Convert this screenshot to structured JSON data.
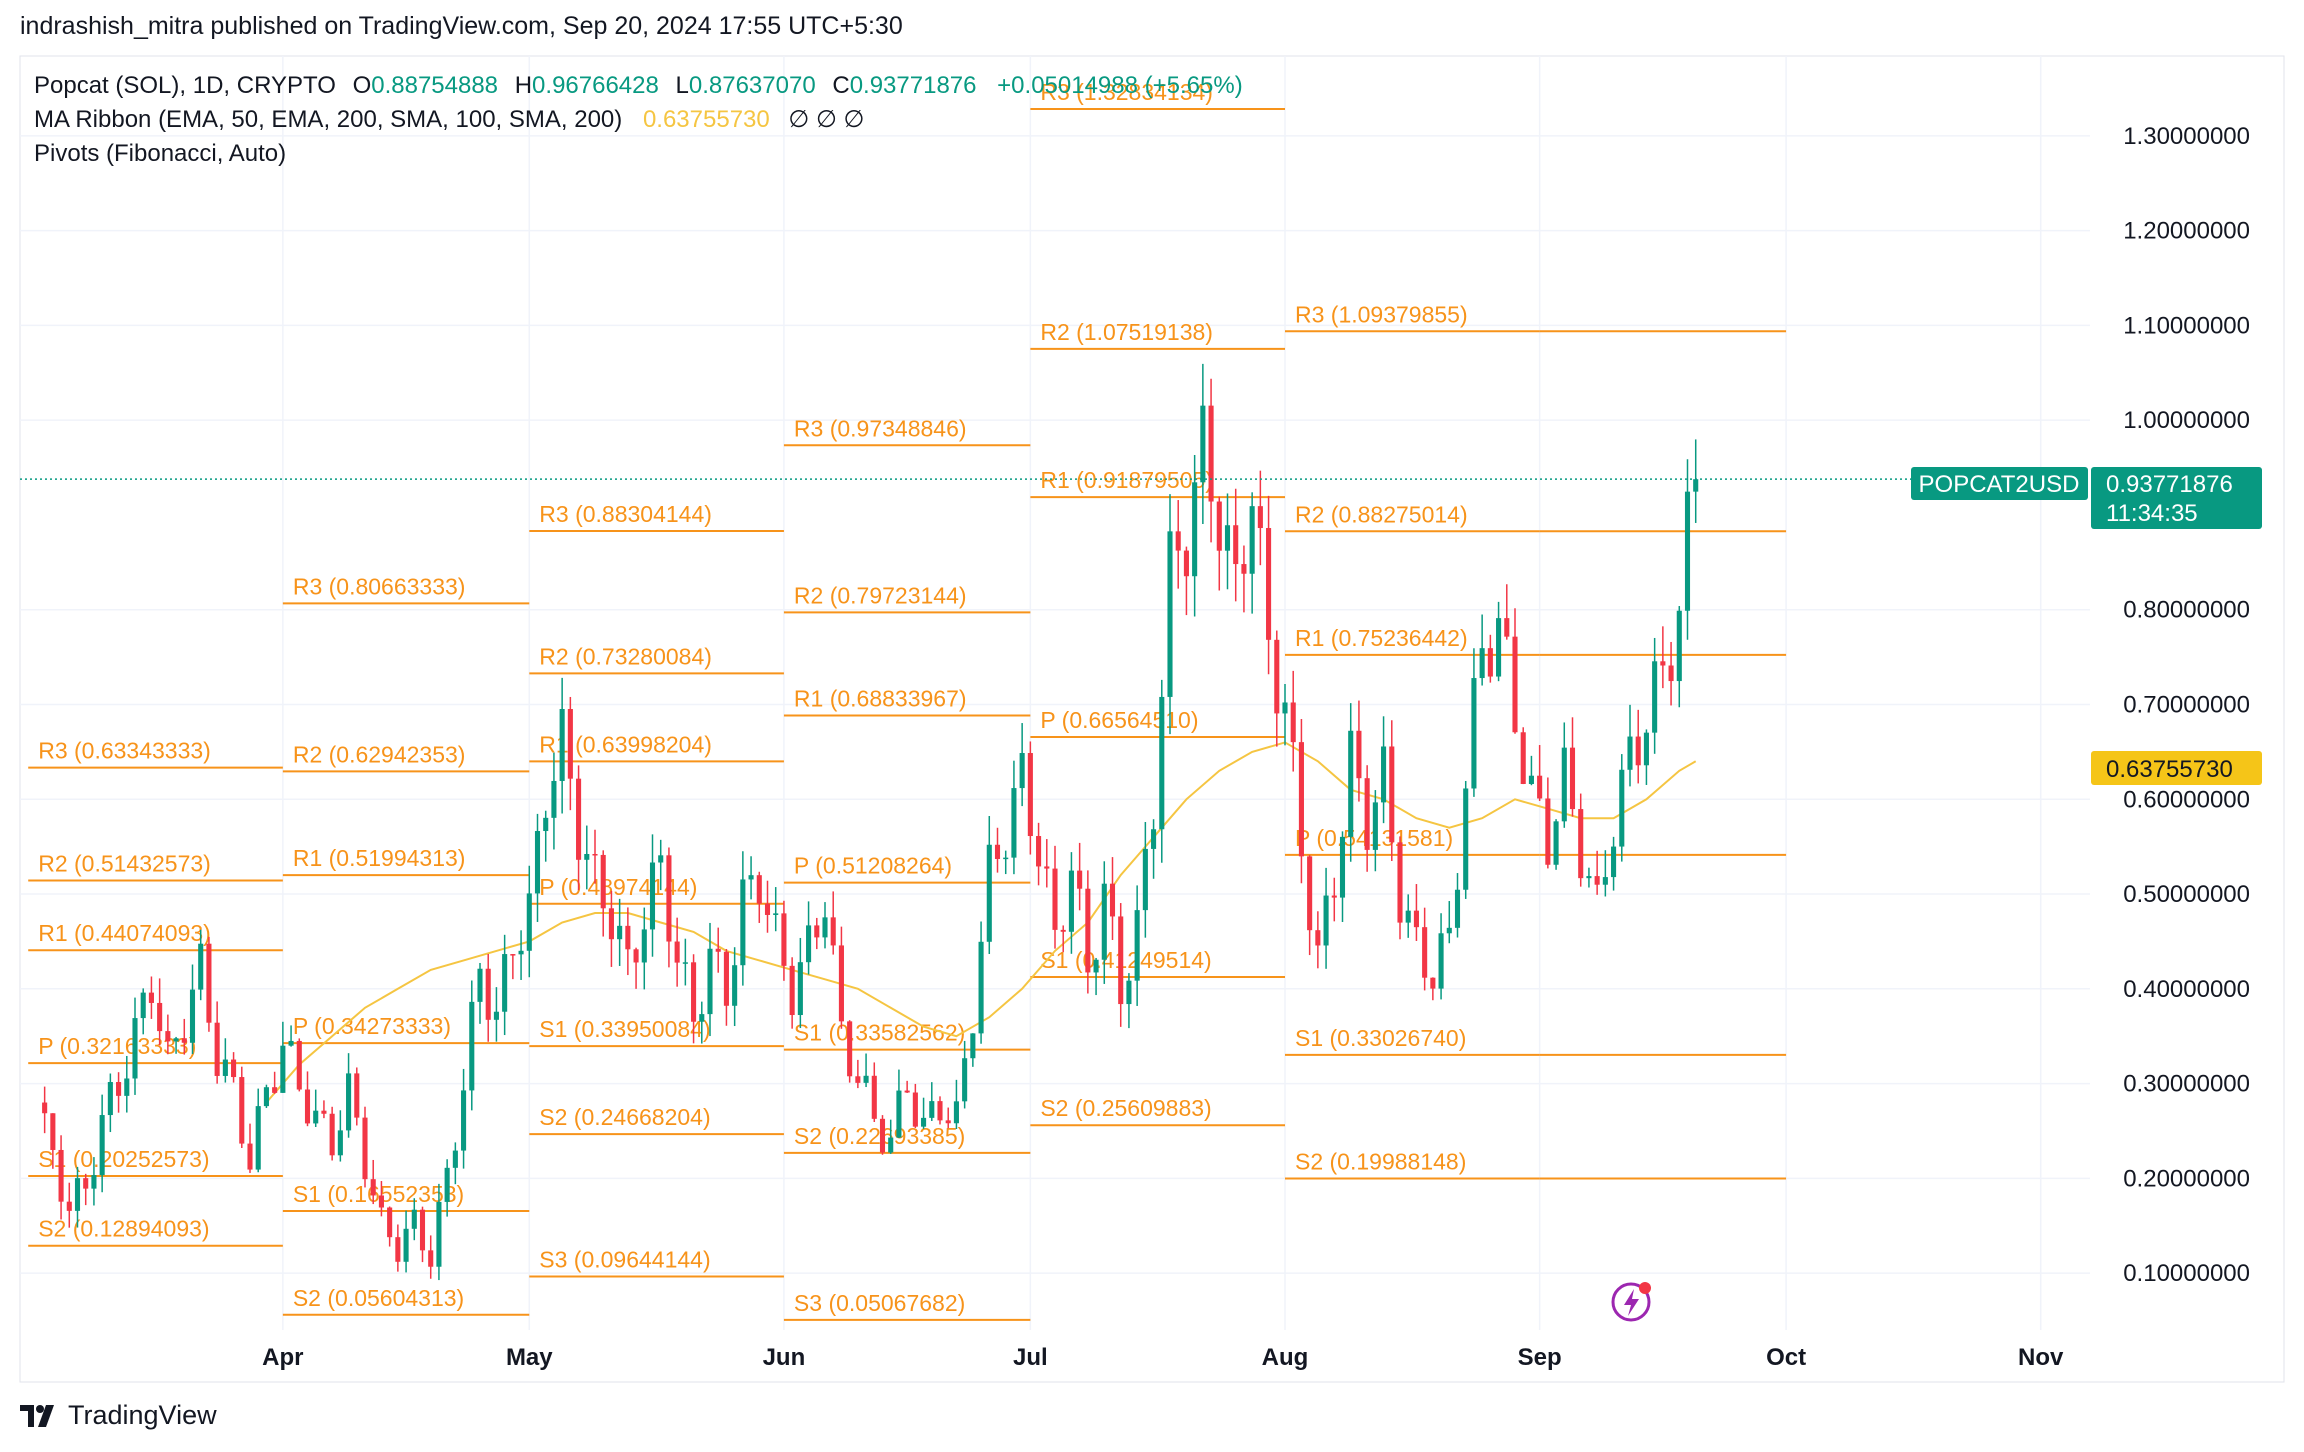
{
  "header": {
    "published": "indrashish_mitra published on TradingView.com, Sep 20, 2024 17:55 UTC+5:30"
  },
  "legend": {
    "symbol": "Popcat (SOL), 1D, CRYPTO",
    "o_label": "O",
    "o_value": "0.88754888",
    "h_label": "H",
    "h_value": "0.96766428",
    "l_label": "L",
    "l_value": "0.87637070",
    "c_label": "C",
    "c_value": "0.93771876",
    "change": "+0.05014988 (+5.65%)",
    "ma_name": "MA Ribbon (EMA, 50, EMA, 200, SMA, 100, SMA, 200)",
    "ma_value": "0.63755730",
    "ma_na": "∅  ∅  ∅",
    "pivots_name": "Pivots (Fibonacci, Auto)"
  },
  "price_tag": {
    "symbol": "POPCAT2USD",
    "price": "0.93771876",
    "countdown": "11:34:35"
  },
  "ma_tag": {
    "value": "0.63755730"
  },
  "footer": {
    "brand": "TradingView",
    "logo_icon": "tradingview-logo-icon"
  },
  "colors": {
    "up": "#089981",
    "down": "#f23645",
    "pivot": "#f7931a",
    "ma": "#f5c542",
    "tag_bg": "#089981",
    "ma_tag_bg": "#f5c518"
  },
  "chart_data": {
    "type": "candlestick",
    "ylim": [
      0.04,
      1.38
    ],
    "y_ticks": [
      "1.30000000",
      "1.20000000",
      "1.10000000",
      "1.00000000",
      "0.80000000",
      "0.70000000",
      "0.60000000",
      "0.50000000",
      "0.40000000",
      "0.30000000",
      "0.20000000",
      "0.10000000"
    ],
    "y_tick_values": [
      1.3,
      1.2,
      1.1,
      1.0,
      0.8,
      0.7,
      0.6,
      0.5,
      0.4,
      0.3,
      0.2,
      0.1
    ],
    "x_ticks": [
      {
        "label": "Apr",
        "day": 0
      },
      {
        "label": "May",
        "day": 30
      },
      {
        "label": "Jun",
        "day": 61
      },
      {
        "label": "Jul",
        "day": 91
      },
      {
        "label": "Aug",
        "day": 122
      },
      {
        "label": "Sep",
        "day": 153
      },
      {
        "label": "Oct",
        "day": 183
      },
      {
        "label": "Nov",
        "day": 214
      }
    ],
    "x_range_days": [
      -32,
      220
    ],
    "last_price": 0.93771876,
    "pivot_periods": [
      {
        "from": -31,
        "to": 0,
        "levels": [
          {
            "label": "R3 (0.63343333)",
            "value": 0.63343333
          },
          {
            "label": "R2 (0.51432573)",
            "value": 0.51432573
          },
          {
            "label": "R1 (0.44074093)",
            "value": 0.44074093
          },
          {
            "label": "P (0.32163333)",
            "value": 0.32163333
          },
          {
            "label": "S1 (0.20252573)",
            "value": 0.20252573
          },
          {
            "label": "S2 (0.12894093)",
            "value": 0.12894093
          }
        ]
      },
      {
        "from": 0,
        "to": 30,
        "levels": [
          {
            "label": "R3 (0.80663333)",
            "value": 0.80663333
          },
          {
            "label": "R2 (0.62942353)",
            "value": 0.62942353
          },
          {
            "label": "R1 (0.51994313)",
            "value": 0.51994313
          },
          {
            "label": "P (0.34273333)",
            "value": 0.34273333
          },
          {
            "label": "S1 (0.16552353)",
            "value": 0.16552353
          },
          {
            "label": "S2 (0.05604313)",
            "value": 0.05604313
          }
        ]
      },
      {
        "from": 30,
        "to": 61,
        "levels": [
          {
            "label": "R3 (0.88304144)",
            "value": 0.88304144
          },
          {
            "label": "R2 (0.73280084)",
            "value": 0.73280084
          },
          {
            "label": "R1 (0.63998204)",
            "value": 0.63998204
          },
          {
            "label": "P (0.48974144)",
            "value": 0.48974144
          },
          {
            "label": "S1 (0.33950084)",
            "value": 0.33950084
          },
          {
            "label": "S2 (0.24668204)",
            "value": 0.24668204
          },
          {
            "label": "S3 (0.09644144)",
            "value": 0.09644144
          }
        ]
      },
      {
        "from": 61,
        "to": 91,
        "levels": [
          {
            "label": "R3 (0.97348846)",
            "value": 0.97348846
          },
          {
            "label": "R2 (0.79723144)",
            "value": 0.79723144
          },
          {
            "label": "R1 (0.68833967)",
            "value": 0.68833967
          },
          {
            "label": "P (0.51208264)",
            "value": 0.51208264
          },
          {
            "label": "S1 (0.33582562)",
            "value": 0.33582562
          },
          {
            "label": "S2 (0.22693385)",
            "value": 0.22693385
          },
          {
            "label": "S3 (0.05067682)",
            "value": 0.05067682
          }
        ]
      },
      {
        "from": 91,
        "to": 122,
        "levels": [
          {
            "label": "R3 (1.32834134)",
            "value": 1.32834134
          },
          {
            "label": "R2 (1.07519138)",
            "value": 1.07519138
          },
          {
            "label": "R1 (0.91879505)",
            "value": 0.91879505
          },
          {
            "label": "P (0.66564510)",
            "value": 0.6656451
          },
          {
            "label": "S1 (0.41249514)",
            "value": 0.41249514
          },
          {
            "label": "S2 (0.25609883)",
            "value": 0.25609883
          }
        ]
      },
      {
        "from": 122,
        "to": 153,
        "levels": [
          {
            "label": "R3 (1.09379855)",
            "value": 1.09379855
          },
          {
            "label": "R2 (0.88275014)",
            "value": 0.88275014
          },
          {
            "label": "R1 (0.75236442)",
            "value": 0.75236442
          },
          {
            "label": "P (0.54131581)",
            "value": 0.54131581
          },
          {
            "label": "S1 (0.33026740)",
            "value": 0.3302674
          },
          {
            "label": "S2 (0.19988148)",
            "value": 0.19988148
          }
        ]
      }
    ],
    "extensions": [
      {
        "from": 153,
        "to": 183,
        "levels": [
          1.09379855,
          0.88275014,
          0.75236442,
          0.54131581,
          0.3302674,
          0.19988148
        ]
      }
    ],
    "close_path": [
      [
        -30,
        0.28
      ],
      [
        -28,
        0.22
      ],
      [
        -26,
        0.17
      ],
      [
        -24,
        0.19
      ],
      [
        -22,
        0.26
      ],
      [
        -20,
        0.3
      ],
      [
        -18,
        0.35
      ],
      [
        -16,
        0.41
      ],
      [
        -14,
        0.32
      ],
      [
        -12,
        0.37
      ],
      [
        -10,
        0.42
      ],
      [
        -8,
        0.33
      ],
      [
        -6,
        0.29
      ],
      [
        -4,
        0.22
      ],
      [
        -2,
        0.29
      ],
      [
        0,
        0.34
      ],
      [
        2,
        0.3
      ],
      [
        4,
        0.26
      ],
      [
        6,
        0.24
      ],
      [
        8,
        0.29
      ],
      [
        10,
        0.22
      ],
      [
        12,
        0.15
      ],
      [
        14,
        0.13
      ],
      [
        16,
        0.15
      ],
      [
        18,
        0.12
      ],
      [
        20,
        0.2
      ],
      [
        22,
        0.3
      ],
      [
        24,
        0.42
      ],
      [
        26,
        0.37
      ],
      [
        28,
        0.45
      ],
      [
        30,
        0.48
      ],
      [
        32,
        0.61
      ],
      [
        34,
        0.66
      ],
      [
        36,
        0.57
      ],
      [
        38,
        0.51
      ],
      [
        40,
        0.48
      ],
      [
        42,
        0.42
      ],
      [
        44,
        0.48
      ],
      [
        46,
        0.53
      ],
      [
        48,
        0.43
      ],
      [
        50,
        0.37
      ],
      [
        52,
        0.43
      ],
      [
        54,
        0.4
      ],
      [
        56,
        0.49
      ],
      [
        58,
        0.52
      ],
      [
        60,
        0.45
      ],
      [
        62,
        0.4
      ],
      [
        64,
        0.44
      ],
      [
        66,
        0.5
      ],
      [
        68,
        0.35
      ],
      [
        70,
        0.31
      ],
      [
        72,
        0.26
      ],
      [
        74,
        0.24
      ],
      [
        76,
        0.3
      ],
      [
        78,
        0.25
      ],
      [
        80,
        0.28
      ],
      [
        82,
        0.26
      ],
      [
        84,
        0.38
      ],
      [
        86,
        0.52
      ],
      [
        88,
        0.57
      ],
      [
        90,
        0.62
      ],
      [
        92,
        0.55
      ],
      [
        94,
        0.45
      ],
      [
        96,
        0.53
      ],
      [
        98,
        0.42
      ],
      [
        100,
        0.5
      ],
      [
        102,
        0.4
      ],
      [
        104,
        0.46
      ],
      [
        106,
        0.6
      ],
      [
        108,
        0.84
      ],
      [
        110,
        0.88
      ],
      [
        112,
        0.97
      ],
      [
        114,
        0.9
      ],
      [
        116,
        0.82
      ],
      [
        118,
        0.93
      ],
      [
        120,
        0.76
      ],
      [
        122,
        0.7
      ],
      [
        124,
        0.55
      ],
      [
        126,
        0.43
      ],
      [
        128,
        0.52
      ],
      [
        130,
        0.64
      ],
      [
        132,
        0.58
      ],
      [
        134,
        0.62
      ],
      [
        136,
        0.5
      ],
      [
        138,
        0.44
      ],
      [
        140,
        0.42
      ],
      [
        142,
        0.45
      ],
      [
        144,
        0.62
      ],
      [
        146,
        0.76
      ],
      [
        148,
        0.78
      ],
      [
        150,
        0.69
      ],
      [
        152,
        0.6
      ],
      [
        154,
        0.56
      ],
      [
        156,
        0.62
      ],
      [
        158,
        0.55
      ],
      [
        160,
        0.48
      ],
      [
        162,
        0.58
      ],
      [
        164,
        0.64
      ],
      [
        166,
        0.69
      ],
      [
        168,
        0.73
      ],
      [
        170,
        0.8
      ],
      [
        171,
        0.88
      ],
      [
        172,
        0.94
      ]
    ],
    "ma_path": [
      [
        -2,
        0.28
      ],
      [
        2,
        0.32
      ],
      [
        6,
        0.35
      ],
      [
        10,
        0.38
      ],
      [
        14,
        0.4
      ],
      [
        18,
        0.42
      ],
      [
        22,
        0.43
      ],
      [
        26,
        0.44
      ],
      [
        30,
        0.45
      ],
      [
        34,
        0.47
      ],
      [
        38,
        0.48
      ],
      [
        42,
        0.48
      ],
      [
        46,
        0.47
      ],
      [
        50,
        0.46
      ],
      [
        54,
        0.44
      ],
      [
        58,
        0.43
      ],
      [
        62,
        0.42
      ],
      [
        66,
        0.41
      ],
      [
        70,
        0.4
      ],
      [
        74,
        0.38
      ],
      [
        78,
        0.36
      ],
      [
        82,
        0.35
      ],
      [
        86,
        0.37
      ],
      [
        90,
        0.4
      ],
      [
        94,
        0.44
      ],
      [
        98,
        0.47
      ],
      [
        102,
        0.52
      ],
      [
        106,
        0.56
      ],
      [
        110,
        0.6
      ],
      [
        114,
        0.63
      ],
      [
        118,
        0.65
      ],
      [
        122,
        0.66
      ],
      [
        126,
        0.64
      ],
      [
        130,
        0.61
      ],
      [
        134,
        0.6
      ],
      [
        138,
        0.58
      ],
      [
        142,
        0.57
      ],
      [
        146,
        0.58
      ],
      [
        150,
        0.6
      ],
      [
        154,
        0.59
      ],
      [
        158,
        0.58
      ],
      [
        162,
        0.58
      ],
      [
        166,
        0.6
      ],
      [
        170,
        0.63
      ],
      [
        172,
        0.64
      ]
    ]
  }
}
